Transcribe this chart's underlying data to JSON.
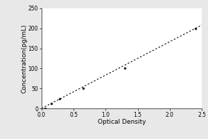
{
  "x_data": [
    0.05,
    0.15,
    0.28,
    0.65,
    1.3,
    2.4
  ],
  "y_data": [
    0,
    12,
    25,
    50,
    100,
    200
  ],
  "line_x": [
    0.0,
    2.5
  ],
  "line_y": [
    0.0,
    208.3
  ],
  "xlabel": "Optical Density",
  "ylabel": "Concentration(pg/mL)",
  "xlim": [
    0,
    2.5
  ],
  "ylim": [
    0,
    250
  ],
  "xticks": [
    0,
    0.5,
    1,
    1.5,
    2,
    2.5
  ],
  "yticks": [
    0,
    50,
    100,
    150,
    200,
    250
  ],
  "marker_color": "#222222",
  "line_color": "#222222",
  "background_color": "#e8e8e8",
  "plot_bg_color": "#ffffff",
  "axis_fontsize": 6.5,
  "tick_fontsize": 5.5
}
